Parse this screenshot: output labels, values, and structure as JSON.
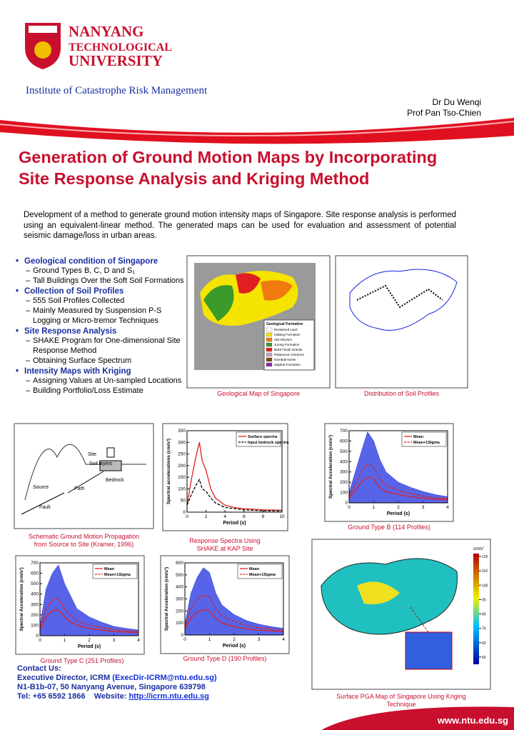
{
  "header": {
    "university": [
      "NANYANG",
      "TECHNOLOGICAL",
      "UNIVERSITY"
    ],
    "institute": "Institute of Catastrophe Risk Management",
    "authors": [
      "Dr Du Wenqi",
      "Prof Pan Tso-Chien"
    ]
  },
  "title": [
    "Generation of Ground Motion Maps by Incorporating",
    "Site Response Analysis and Kriging Method"
  ],
  "intro": "Development of a method to generate ground motion intensity maps of Singapore. Site response analysis is performed using an equivalent-linear method. The generated maps can be used for evaluation and assessment of potential seismic damage/loss in urban areas.",
  "bullets": [
    {
      "heading": "Geological condition of Singapore",
      "items": [
        "Ground Types B, C, D and S₁",
        "Tall Buildings Over the Soft Soil Formations"
      ]
    },
    {
      "heading": "Collection of Soil Profiles",
      "items": [
        "555 Soil Profiles Collected",
        "Mainly Measured by Suspension P-S Logging or Micro-tremor Techniques"
      ]
    },
    {
      "heading": "Site Response Analysis",
      "items": [
        "SHAKE Program for One-dimensional Site Response Method",
        "Obtaining Surface Spectrum"
      ]
    },
    {
      "heading": "Intensity Maps with Kriging",
      "items": [
        "Assigning Values at Un-sampled Locations",
        "Building Portfolio/Loss Estimate"
      ]
    }
  ],
  "figures": {
    "geological_map": {
      "caption": "Geological Map of Singapore",
      "legend_title": "Geological Formation",
      "legend": [
        {
          "name": "Reclaimed Land",
          "color": "#ffffff"
        },
        {
          "name": "Kallang Formation",
          "color": "#f5e400"
        },
        {
          "name": "Old Alluvium",
          "color": "#f07a10"
        },
        {
          "name": "Jurong Formation",
          "color": "#3a9a2a"
        },
        {
          "name": "Bukit Timah Granite",
          "color": "#e02020"
        },
        {
          "name": "Palaeozoic Volcanics",
          "color": "#d0a0c0"
        },
        {
          "name": "Gombak Norite",
          "color": "#7a4a10"
        },
        {
          "name": "Sajahat Formation",
          "color": "#8a2aa0"
        }
      ]
    },
    "soil_profiles": {
      "caption": "Distribution of Soil Profiles"
    },
    "schematic": {
      "caption": [
        "Schematic Ground Motion Propagation",
        "from Source to Site (Kramer, 1996)"
      ],
      "labels": {
        "site": "Site",
        "soil": "Soil layers",
        "bedrock": "Bedrock",
        "source": "Source",
        "path": "Path",
        "fault": "Fault"
      }
    },
    "response_spectra": {
      "type": "line",
      "caption": [
        "Response Spectra Using",
        "SHAKE at  KAP Site"
      ],
      "xlabel": "Period (s)",
      "ylabel": "Spectral accelerations (cm/s²)",
      "xlim": [
        0,
        10
      ],
      "xticks": [
        0,
        2,
        4,
        6,
        8,
        10
      ],
      "ylim": [
        0,
        350
      ],
      "yticks": [
        0,
        50,
        100,
        150,
        200,
        250,
        300,
        350
      ],
      "x": [
        0,
        0.5,
        1,
        1.3,
        1.6,
        2,
        2.5,
        3,
        4,
        5,
        6,
        8,
        10
      ],
      "series": [
        {
          "name": "Surface spectra",
          "color": "#e02020",
          "dashed": false,
          "values": [
            30,
            150,
            250,
            300,
            220,
            180,
            100,
            60,
            30,
            20,
            15,
            10,
            8
          ]
        },
        {
          "name": "Input bedrock spectra",
          "color": "#000000",
          "dashed": true,
          "values": [
            30,
            80,
            120,
            140,
            100,
            90,
            60,
            40,
            20,
            15,
            10,
            6,
            5
          ]
        }
      ]
    },
    "type_b": {
      "type": "line",
      "caption": "Ground Type B (114 Profiles)",
      "xlabel": "Period (s)",
      "ylabel": "Spectral Acceleration (cm/s²)",
      "xlim": [
        0,
        4
      ],
      "xticks": [
        0,
        1,
        2,
        3,
        4
      ],
      "ylim": [
        0,
        700
      ],
      "yticks": [
        0,
        100,
        200,
        300,
        400,
        500,
        600,
        700
      ],
      "x": [
        0,
        0.25,
        0.5,
        0.75,
        1,
        1.25,
        1.5,
        2,
        2.5,
        3,
        3.5,
        4
      ],
      "series": [
        {
          "color": "#2030e0",
          "fill": true,
          "values": [
            100,
            300,
            500,
            690,
            600,
            420,
            300,
            200,
            150,
            110,
            80,
            60
          ]
        },
        {
          "name": "Mean",
          "color": "#e02020",
          "dashed": false,
          "values": [
            50,
            120,
            200,
            250,
            230,
            150,
            110,
            80,
            60,
            45,
            35,
            30
          ]
        },
        {
          "name": "Mean+1Sigma",
          "color": "#e02020",
          "dashed": true,
          "values": [
            70,
            180,
            300,
            380,
            350,
            230,
            170,
            120,
            90,
            65,
            50,
            40
          ]
        }
      ]
    },
    "type_c": {
      "type": "line",
      "caption": "Ground Type C (251 Profiles)",
      "xlabel": "Period (s)",
      "ylabel": "Spectral Acceleration (cm/s²)",
      "xlim": [
        0,
        4
      ],
      "xticks": [
        0,
        1,
        2,
        3,
        4
      ],
      "ylim": [
        0,
        700
      ],
      "yticks": [
        0,
        100,
        200,
        300,
        400,
        500,
        600,
        700
      ],
      "x": [
        0,
        0.25,
        0.5,
        0.75,
        1,
        1.25,
        1.5,
        2,
        2.5,
        3,
        3.5,
        4
      ],
      "series": [
        {
          "color": "#2030e0",
          "fill": true,
          "values": [
            100,
            450,
            600,
            680,
            500,
            380,
            260,
            180,
            130,
            90,
            70,
            55
          ]
        },
        {
          "name": "Mean",
          "color": "#e02020",
          "dashed": false,
          "values": [
            60,
            180,
            240,
            250,
            180,
            130,
            100,
            70,
            55,
            40,
            35,
            30
          ]
        },
        {
          "name": "Mean+1Sigma",
          "color": "#e02020",
          "dashed": true,
          "values": [
            80,
            260,
            340,
            360,
            260,
            190,
            140,
            100,
            80,
            60,
            50,
            40
          ]
        }
      ]
    },
    "type_d": {
      "type": "line",
      "caption": "Ground Type D (190 Profiles)",
      "xlabel": "Period (s)",
      "ylabel": "Spectral Acceleration (cm/s²)",
      "xlim": [
        0,
        4
      ],
      "xticks": [
        0,
        1,
        2,
        3,
        4
      ],
      "ylim": [
        0,
        600
      ],
      "yticks": [
        0,
        100,
        200,
        300,
        400,
        500,
        600
      ],
      "x": [
        0,
        0.25,
        0.5,
        0.75,
        1,
        1.25,
        1.5,
        2,
        2.5,
        3,
        3.5,
        4
      ],
      "series": [
        {
          "color": "#2030e0",
          "fill": true,
          "values": [
            90,
            350,
            480,
            560,
            520,
            350,
            250,
            170,
            120,
            90,
            70,
            55
          ]
        },
        {
          "name": "Mean",
          "color": "#e02020",
          "dashed": false,
          "values": [
            50,
            140,
            190,
            210,
            200,
            140,
            100,
            70,
            50,
            40,
            35,
            30
          ]
        },
        {
          "name": "Mean+1Sigma",
          "color": "#e02020",
          "dashed": true,
          "values": [
            70,
            220,
            300,
            330,
            320,
            220,
            160,
            110,
            80,
            60,
            50,
            40
          ]
        }
      ]
    },
    "pga_map": {
      "caption": [
        "Surface PGA Map of Singapore Using Kriging",
        "Technique"
      ],
      "colorbar": {
        "label": "cm/s²",
        "lim": [
          45,
          122
        ],
        "ticks": [
          50,
          60,
          70,
          80,
          90,
          100,
          110,
          120
        ]
      }
    }
  },
  "contact": {
    "heading": "Contact Us:",
    "director": "Executive Director, ICRM",
    "email": "(ExecDir-ICRM@ntu.edu.sg)",
    "address": "N1-B1b-07, 50 Nanyang Avenue, Singapore 639798",
    "tel": "Tel: +65 6592 1866",
    "website_label": "Website:",
    "website": "http://icrm.ntu.edu.sg"
  },
  "footer": "www.ntu.edu.sg"
}
